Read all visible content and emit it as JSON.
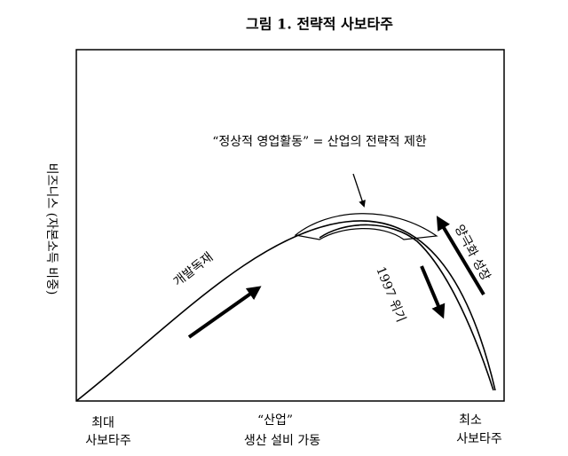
{
  "title": "그림 1. 전략적 사보타주",
  "y_axis_label": "비즈니스 (자본소득 비중)",
  "annotation": "“정상적 영업활동” = 산업의 전략적 제한",
  "curve_labels": {
    "rise": "개발독재",
    "crisis": "1997 위기",
    "polarized": "양극화 성장"
  },
  "x_labels": {
    "left": [
      "최대",
      "사보타주"
    ],
    "middle": [
      "“산업”",
      "생산 설비 가동"
    ],
    "right": [
      "최소",
      "사보타주"
    ]
  }
}
